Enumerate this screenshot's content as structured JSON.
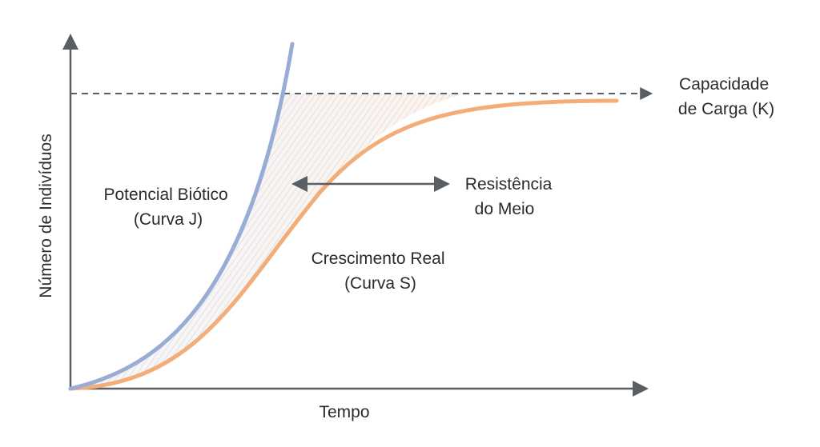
{
  "axes": {
    "y_label": "Número de Indivíduos",
    "x_label": "Tempo"
  },
  "labels": {
    "capacity": [
      "Capacidade",
      "de Carga (K)"
    ],
    "j_curve": [
      "Potencial Biótico",
      "(Curva J)"
    ],
    "resistance": [
      "Resistência",
      "do Meio"
    ],
    "s_curve": [
      "Crescimento Real",
      "(Curva S)"
    ]
  }
}
